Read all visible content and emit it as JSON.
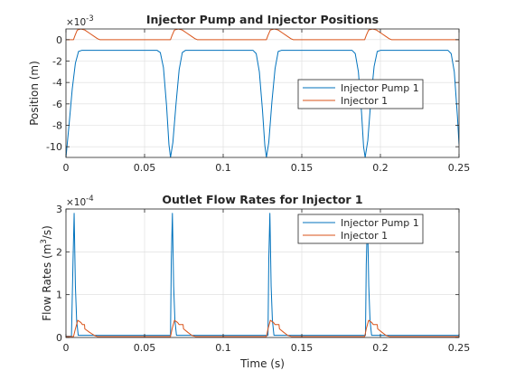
{
  "colors": {
    "pump": "#0072BD",
    "injector": "#D95319",
    "grid": "#dcdcdc",
    "axis": "#262626"
  },
  "chart_data": [
    {
      "type": "line",
      "title": "Injector Pump and Injector Positions",
      "xlabel": "",
      "ylabel": "Position (m)",
      "xlim": [
        0,
        0.25
      ],
      "ylim": [
        -0.011,
        0.001
      ],
      "x_ticks": [
        "0",
        "0.05",
        "0.1",
        "0.15",
        "0.2",
        "0.25"
      ],
      "y_ticks": [
        "0",
        "-2",
        "-4",
        "-6",
        "-8",
        "-10"
      ],
      "y_exponent": "×10",
      "y_exponent_power": "-3",
      "grid": true,
      "legend_placement": "center-right",
      "series": [
        {
          "name": "Injector Pump 1",
          "points": [
            [
              0,
              -0.011
            ],
            [
              0.002,
              -0.0079
            ],
            [
              0.004,
              -0.0046
            ],
            [
              0.006,
              -0.0022
            ],
            [
              0.008,
              -0.0011
            ],
            [
              0.01,
              -0.001
            ],
            [
              0.058,
              -0.001
            ],
            [
              0.06,
              -0.0012
            ],
            [
              0.062,
              -0.0026
            ],
            [
              0.064,
              -0.0062
            ],
            [
              0.0655,
              -0.0098
            ],
            [
              0.0665,
              -0.011
            ],
            [
              0.068,
              -0.0096
            ],
            [
              0.07,
              -0.006
            ],
            [
              0.072,
              -0.0028
            ],
            [
              0.074,
              -0.0012
            ],
            [
              0.076,
              -0.001
            ],
            [
              0.119,
              -0.001
            ],
            [
              0.121,
              -0.0013
            ],
            [
              0.123,
              -0.003
            ],
            [
              0.125,
              -0.0066
            ],
            [
              0.1265,
              -0.0099
            ],
            [
              0.1275,
              -0.011
            ],
            [
              0.129,
              -0.0096
            ],
            [
              0.131,
              -0.0058
            ],
            [
              0.133,
              -0.0027
            ],
            [
              0.135,
              -0.0011
            ],
            [
              0.137,
              -0.001
            ],
            [
              0.182,
              -0.001
            ],
            [
              0.184,
              -0.0013
            ],
            [
              0.186,
              -0.003
            ],
            [
              0.188,
              -0.0068
            ],
            [
              0.1893,
              -0.01
            ],
            [
              0.1903,
              -0.011
            ],
            [
              0.192,
              -0.0094
            ],
            [
              0.194,
              -0.0055
            ],
            [
              0.196,
              -0.0025
            ],
            [
              0.198,
              -0.0011
            ],
            [
              0.2,
              -0.001
            ],
            [
              0.243,
              -0.001
            ],
            [
              0.245,
              -0.0013
            ],
            [
              0.247,
              -0.003
            ],
            [
              0.249,
              -0.0072
            ],
            [
              0.25,
              -0.0098
            ]
          ]
        },
        {
          "name": "Injector 1",
          "points": [
            [
              0,
              0
            ],
            [
              0.0048,
              0
            ],
            [
              0.0058,
              0.0004
            ],
            [
              0.0072,
              0.0009
            ],
            [
              0.0095,
              0.001
            ],
            [
              0.012,
              0.0009
            ],
            [
              0.015,
              0.0006
            ],
            [
              0.018,
              0.0003
            ],
            [
              0.02,
              0.0001
            ],
            [
              0.0215,
              0
            ],
            [
              0.0665,
              0
            ],
            [
              0.0675,
              0.0004
            ],
            [
              0.069,
              0.0009
            ],
            [
              0.0715,
              0.001
            ],
            [
              0.074,
              0.0009
            ],
            [
              0.077,
              0.0006
            ],
            [
              0.08,
              0.0003
            ],
            [
              0.082,
              0.0001
            ],
            [
              0.0835,
              0
            ],
            [
              0.1275,
              0
            ],
            [
              0.1285,
              0.0004
            ],
            [
              0.13,
              0.0009
            ],
            [
              0.1325,
              0.001
            ],
            [
              0.135,
              0.0009
            ],
            [
              0.138,
              0.0006
            ],
            [
              0.141,
              0.0003
            ],
            [
              0.143,
              0.0001
            ],
            [
              0.1445,
              0
            ],
            [
              0.19,
              0
            ],
            [
              0.191,
              0.0004
            ],
            [
              0.1925,
              0.0009
            ],
            [
              0.195,
              0.001
            ],
            [
              0.1975,
              0.0009
            ],
            [
              0.2005,
              0.0006
            ],
            [
              0.2035,
              0.0003
            ],
            [
              0.2055,
              0.0001
            ],
            [
              0.207,
              0
            ],
            [
              0.25,
              0
            ]
          ]
        }
      ]
    },
    {
      "type": "line",
      "title": "Outlet Flow Rates for Injector 1",
      "xlabel": "Time (s)",
      "ylabel_main": "Flow Rates (m",
      "ylabel_sup": "3",
      "ylabel_tail": "/s)",
      "xlim": [
        0,
        0.25
      ],
      "ylim": [
        0,
        0.0003
      ],
      "x_ticks": [
        "0",
        "0.05",
        "0.1",
        "0.15",
        "0.2",
        "0.25"
      ],
      "y_ticks": [
        "0",
        "1",
        "2",
        "3"
      ],
      "y_exponent": "×10",
      "y_exponent_power": "-4",
      "grid": true,
      "legend_placement": "top-right",
      "series": [
        {
          "name": "Injector Pump 1",
          "points": [
            [
              0,
              3e-06
            ],
            [
              0.0035,
              3e-06
            ],
            [
              0.0045,
              0.00018
            ],
            [
              0.0052,
              0.00029
            ],
            [
              0.006,
              0.00012
            ],
            [
              0.0068,
              4e-05
            ],
            [
              0.0078,
              5e-06
            ],
            [
              0.0665,
              5e-06
            ],
            [
              0.067,
              0.00018
            ],
            [
              0.0677,
              0.00029
            ],
            [
              0.0685,
              0.00012
            ],
            [
              0.0693,
              4e-05
            ],
            [
              0.0703,
              5e-06
            ],
            [
              0.1285,
              5e-06
            ],
            [
              0.129,
              0.00018
            ],
            [
              0.1297,
              0.00029
            ],
            [
              0.1305,
              0.00012
            ],
            [
              0.1313,
              4e-05
            ],
            [
              0.1323,
              5e-06
            ],
            [
              0.1905,
              5e-06
            ],
            [
              0.191,
              0.00017
            ],
            [
              0.1918,
              0.00028
            ],
            [
              0.1926,
              0.00012
            ],
            [
              0.1934,
              4e-05
            ],
            [
              0.1944,
              5e-06
            ],
            [
              0.25,
              5e-06
            ]
          ]
        },
        {
          "name": "Injector 1",
          "points": [
            [
              0,
              2e-06
            ],
            [
              0.0048,
              2e-06
            ],
            [
              0.006,
              2e-05
            ],
            [
              0.0075,
              4e-05
            ],
            [
              0.0095,
              3.5e-05
            ],
            [
              0.0105,
              3e-05
            ],
            [
              0.0118,
              3e-05
            ],
            [
              0.012,
              2e-05
            ],
            [
              0.015,
              1.2e-05
            ],
            [
              0.018,
              5e-06
            ],
            [
              0.02,
              2e-06
            ],
            [
              0.0665,
              2e-06
            ],
            [
              0.0675,
              2e-05
            ],
            [
              0.069,
              4e-05
            ],
            [
              0.071,
              3.5e-05
            ],
            [
              0.072,
              3e-05
            ],
            [
              0.0745,
              3e-05
            ],
            [
              0.0748,
              2e-05
            ],
            [
              0.0775,
              1.2e-05
            ],
            [
              0.08,
              5e-06
            ],
            [
              0.0825,
              2e-06
            ],
            [
              0.1275,
              2e-06
            ],
            [
              0.1285,
              2e-05
            ],
            [
              0.13,
              4e-05
            ],
            [
              0.132,
              3.5e-05
            ],
            [
              0.133,
              3e-05
            ],
            [
              0.1355,
              3e-05
            ],
            [
              0.1358,
              2e-05
            ],
            [
              0.1385,
              1.2e-05
            ],
            [
              0.141,
              5e-06
            ],
            [
              0.1435,
              2e-06
            ],
            [
              0.19,
              2e-06
            ],
            [
              0.191,
              2e-05
            ],
            [
              0.1925,
              4e-05
            ],
            [
              0.1945,
              3.5e-05
            ],
            [
              0.1955,
              3e-05
            ],
            [
              0.198,
              3e-05
            ],
            [
              0.1983,
              2e-05
            ],
            [
              0.201,
              1.2e-05
            ],
            [
              0.2035,
              5e-06
            ],
            [
              0.206,
              2e-06
            ],
            [
              0.25,
              2e-06
            ]
          ]
        }
      ]
    }
  ]
}
